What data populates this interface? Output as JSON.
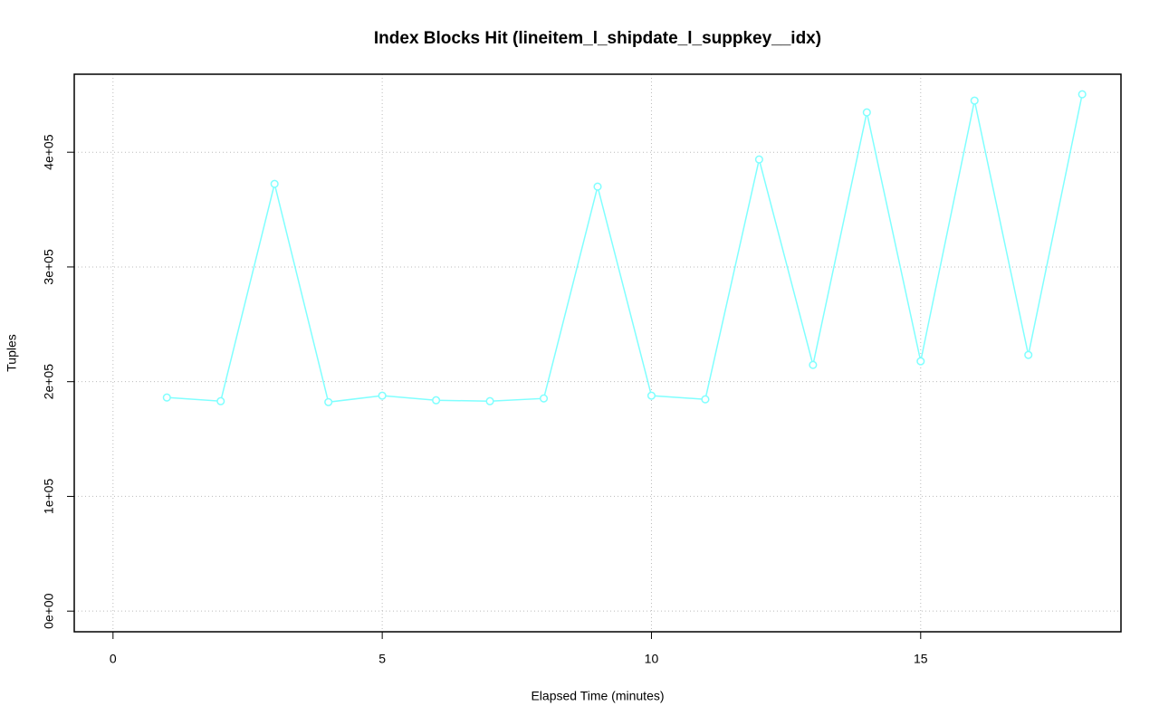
{
  "chart_data": {
    "type": "line",
    "title": "Index Blocks Hit (lineitem_l_shipdate_l_suppkey__idx)",
    "xlabel": "Elapsed Time (minutes)",
    "ylabel": "Tuples",
    "x": [
      1,
      2,
      3,
      4,
      5,
      6,
      7,
      8,
      9,
      10,
      11,
      12,
      13,
      14,
      15,
      16,
      17,
      18
    ],
    "series": [
      {
        "color": "#80ffff",
        "values": [
          186200,
          183000,
          372400,
          182200,
          187800,
          183800,
          183000,
          185400,
          370000,
          187800,
          184600,
          393700,
          214600,
          434700,
          217800,
          445000,
          223300,
          450500
        ]
      }
    ],
    "xlim": [
      -0.72,
      18.72
    ],
    "ylim": [
      -18000,
      468000
    ],
    "xticks": [
      0,
      5,
      10,
      15
    ],
    "yticks": [
      {
        "value": 0,
        "label": "0e+00"
      },
      {
        "value": 100000,
        "label": "1e+05"
      },
      {
        "value": 200000,
        "label": "2e+05"
      },
      {
        "value": 300000,
        "label": "3e+05"
      },
      {
        "value": 400000,
        "label": "4e+05"
      }
    ],
    "grid": true
  }
}
